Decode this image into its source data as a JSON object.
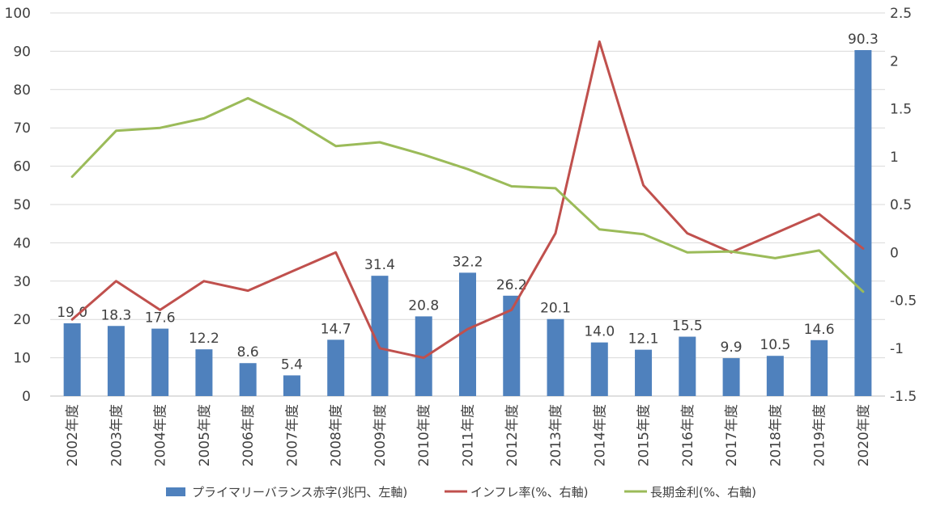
{
  "chart_data": {
    "type": "bar",
    "categories": [
      "2002年度",
      "2003年度",
      "2004年度",
      "2005年度",
      "2006年度",
      "2007年度",
      "2008年度",
      "2009年度",
      "2010年度",
      "2011年度",
      "2012年度",
      "2013年度",
      "2014年度",
      "2015年度",
      "2016年度",
      "2017年度",
      "2018年度",
      "2019年度",
      "2020年度"
    ],
    "left_axis": {
      "ylim": [
        0,
        100
      ],
      "ticks": [
        "0",
        "10",
        "20",
        "30",
        "40",
        "50",
        "60",
        "70",
        "80",
        "90",
        "100"
      ]
    },
    "right_axis": {
      "ylim": [
        -1.5,
        2.5
      ],
      "ticks": [
        "-1.5",
        "-1",
        "-0.5",
        "0",
        "0.5",
        "1",
        "1.5",
        "2",
        "2.5"
      ]
    },
    "series": [
      {
        "name": "プライマリーバランス赤字(兆円、左軸)",
        "kind": "bar",
        "axis": "left",
        "color": "#4f81bd",
        "values": [
          19.0,
          18.3,
          17.6,
          12.2,
          8.6,
          5.4,
          14.7,
          31.4,
          20.8,
          32.2,
          26.2,
          20.1,
          14.0,
          12.1,
          15.5,
          9.9,
          10.5,
          14.6,
          90.3
        ],
        "labels": [
          "19.0",
          "18.3",
          "17.6",
          "12.2",
          "8.6",
          "5.4",
          "14.7",
          "31.4",
          "20.8",
          "32.2",
          "26.2",
          "20.1",
          "14.0",
          "12.1",
          "15.5",
          "9.9",
          "10.5",
          "14.6",
          "90.3"
        ]
      },
      {
        "name": "インフレ率(%、右軸)",
        "kind": "line",
        "axis": "right",
        "color": "#c0504d",
        "values": [
          -0.7,
          -0.3,
          -0.6,
          -0.3,
          -0.4,
          -0.2,
          0.0,
          -1.0,
          -1.1,
          -0.8,
          -0.6,
          0.2,
          2.2,
          0.7,
          0.2,
          0.0,
          0.2,
          0.4,
          0.04
        ]
      },
      {
        "name": "長期金利(%、右軸)",
        "kind": "line",
        "axis": "right",
        "color": "#9bbb59",
        "values": [
          0.79,
          1.27,
          1.3,
          1.4,
          1.61,
          1.39,
          1.11,
          1.15,
          1.02,
          0.87,
          0.69,
          0.67,
          0.24,
          0.19,
          0.0,
          0.01,
          -0.06,
          0.02,
          -0.41
        ]
      }
    ],
    "grid": true,
    "legend_position": "bottom"
  }
}
